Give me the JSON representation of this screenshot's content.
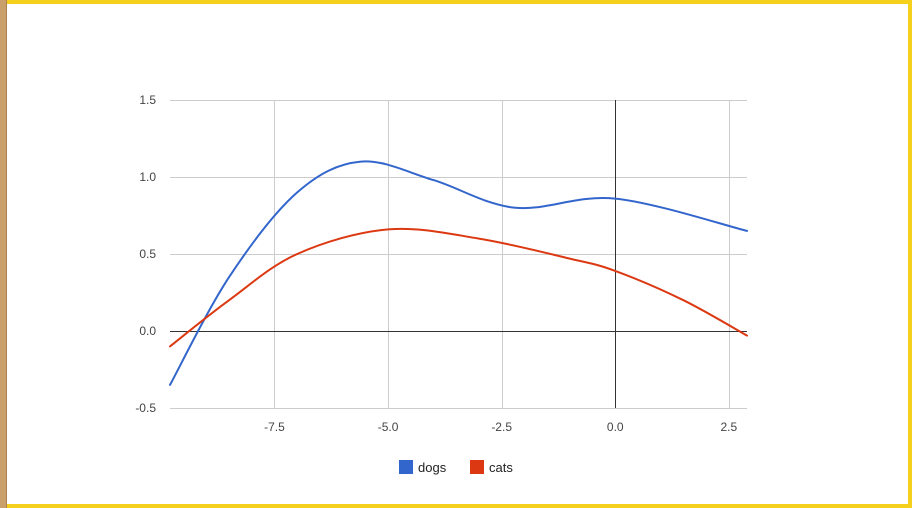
{
  "chart_data": {
    "type": "line",
    "x": [
      -9.8,
      -8.5,
      -7.0,
      -5.6,
      -4.0,
      -2.2,
      0.0,
      2.9
    ],
    "xlim": [
      -9.8,
      2.9
    ],
    "ylim": [
      -0.5,
      1.5
    ],
    "xticks": [
      -7.5,
      -5.0,
      -2.5,
      0.0,
      2.5
    ],
    "xtick_labels": [
      "-7.5",
      "-5.0",
      "-2.5",
      "0.0",
      "2.5"
    ],
    "yticks": [
      -0.5,
      0.0,
      0.5,
      1.0,
      1.5
    ],
    "ytick_labels": [
      "-0.5",
      "0.0",
      "0.5",
      "1.0",
      "1.5"
    ],
    "grid": true,
    "legend_position": "bottom",
    "series": [
      {
        "name": "dogs",
        "color": "#3366cc",
        "points": [
          [
            -9.8,
            -0.35
          ],
          [
            -8.5,
            0.35
          ],
          [
            -7.0,
            0.9
          ],
          [
            -5.6,
            1.1
          ],
          [
            -4.0,
            0.98
          ],
          [
            -2.2,
            0.8
          ],
          [
            0.0,
            0.86
          ],
          [
            2.9,
            0.65
          ]
        ]
      },
      {
        "name": "cats",
        "color": "#dc3912",
        "points": [
          [
            -9.8,
            -0.1
          ],
          [
            -8.5,
            0.2
          ],
          [
            -7.0,
            0.5
          ],
          [
            -5.0,
            0.66
          ],
          [
            -3.0,
            0.6
          ],
          [
            -1.0,
            0.47
          ],
          [
            0.0,
            0.39
          ],
          [
            1.5,
            0.2
          ],
          [
            2.9,
            -0.03
          ]
        ]
      }
    ]
  }
}
